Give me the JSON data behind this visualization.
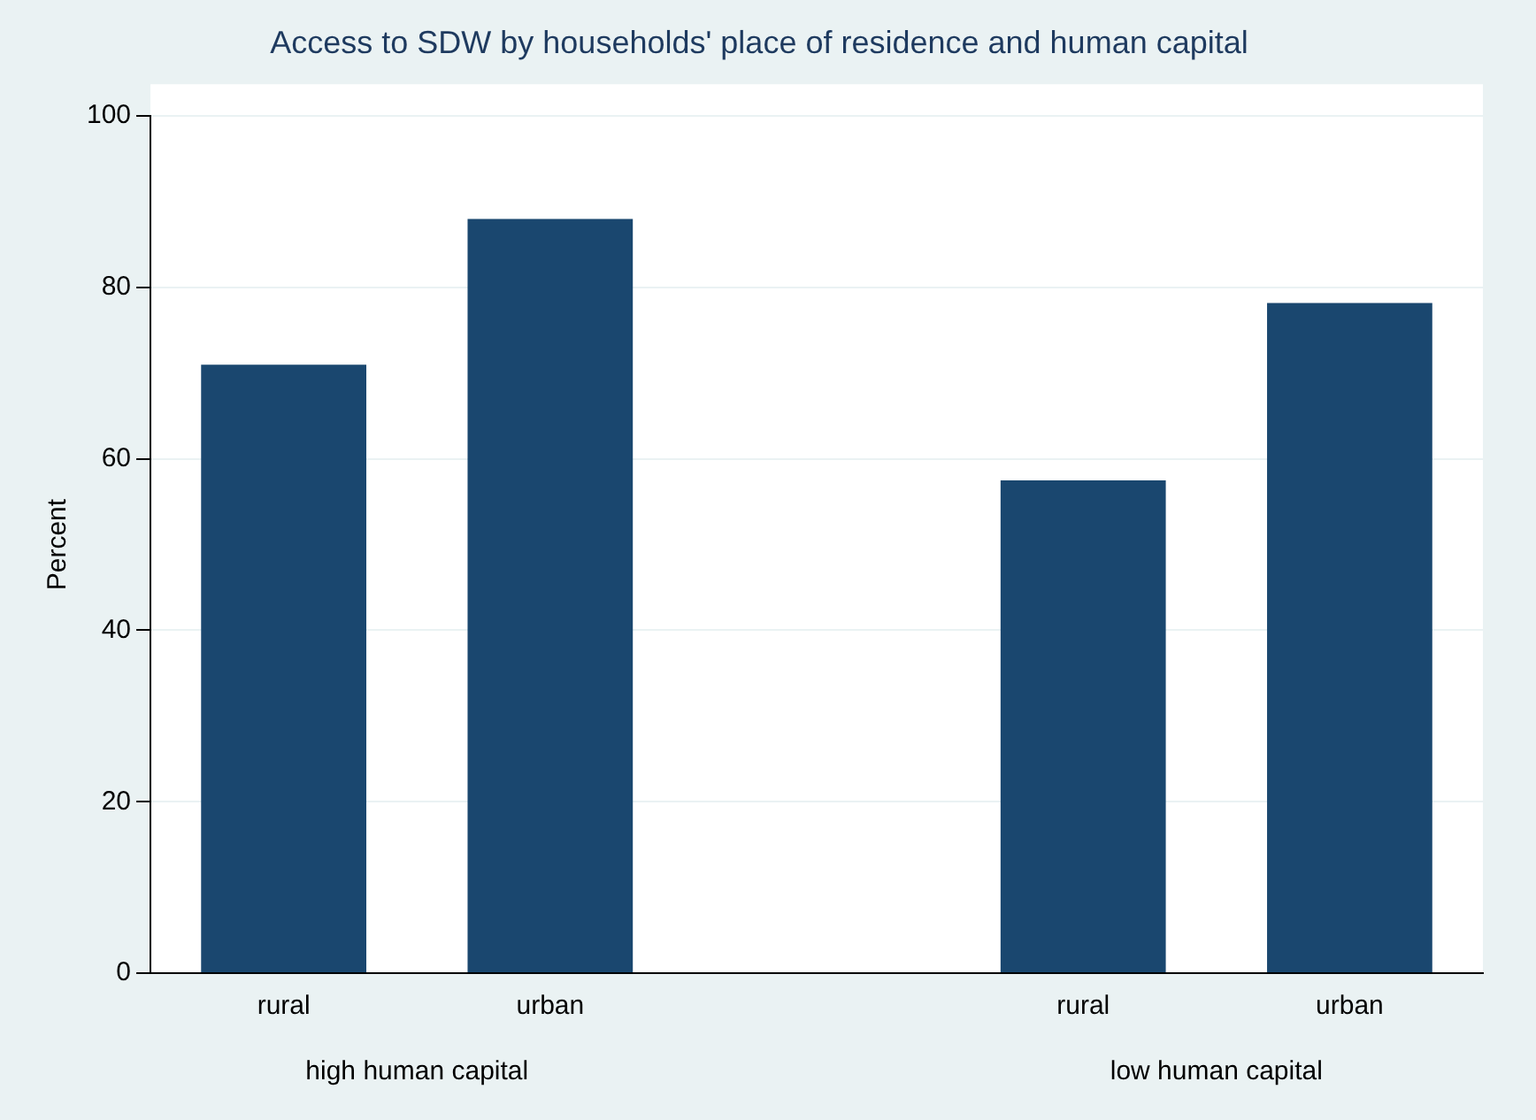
{
  "chart_data": {
    "type": "bar",
    "title": "Access to SDW by households' place of residence and human capital",
    "ylabel": "Percent",
    "categories": [
      "rural",
      "urban",
      null,
      "rural",
      "urban"
    ],
    "values": [
      71,
      88,
      null,
      57.5,
      78.2
    ],
    "color": "#1a476f",
    "ylim": [
      0,
      100
    ],
    "yticks": [
      0,
      20,
      40,
      60,
      80,
      100
    ],
    "grid": "y",
    "legend": false,
    "annotations": [
      "high human capital",
      "low human capital"
    ]
  }
}
